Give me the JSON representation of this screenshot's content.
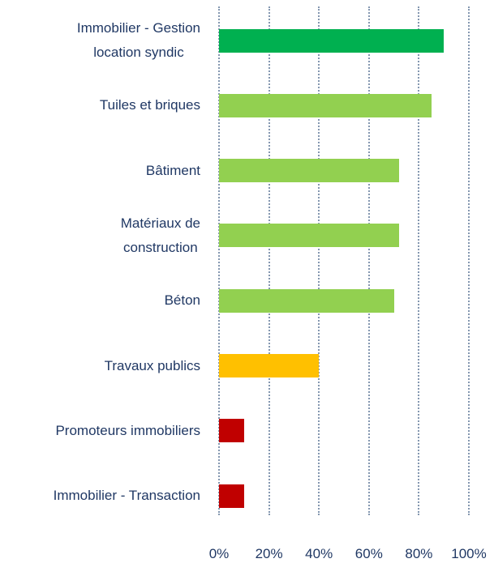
{
  "chart_data": {
    "type": "bar",
    "orientation": "horizontal",
    "categories": [
      "Immobilier - Gestion\nlocation syndic",
      "Tuiles et briques",
      "Bâtiment",
      "Matériaux de\nconstruction",
      "Béton",
      "Travaux publics",
      "Promoteurs immobiliers",
      "Immobilier - Transaction"
    ],
    "values": [
      90,
      85,
      72,
      72,
      70,
      40,
      10,
      10
    ],
    "colors": [
      "#00b050",
      "#92d050",
      "#92d050",
      "#92d050",
      "#92d050",
      "#ffc000",
      "#c00000",
      "#c00000"
    ],
    "xlim": [
      0,
      100
    ],
    "xticks": [
      {
        "value": 0,
        "label": "0%"
      },
      {
        "value": 20,
        "label": "20%"
      },
      {
        "value": 40,
        "label": "40%"
      },
      {
        "value": 60,
        "label": "60%"
      },
      {
        "value": 80,
        "label": "80%"
      },
      {
        "value": 100,
        "label": "100%"
      }
    ],
    "grid": true
  }
}
